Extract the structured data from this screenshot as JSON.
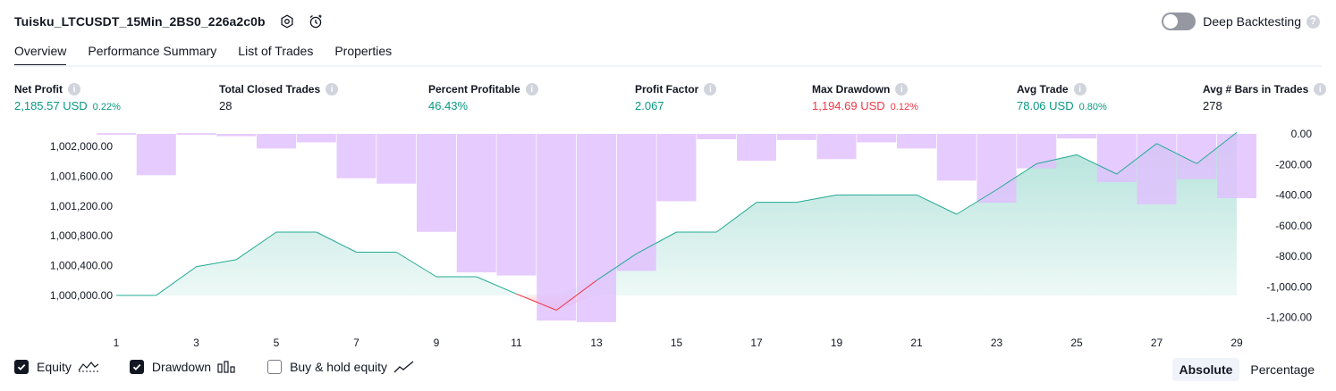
{
  "header": {
    "strategy_title": "Tuisku_LTCUSDT_15Min_2BS0_226a2c0b",
    "deep_backtesting_label": "Deep Backtesting",
    "deep_backtesting_on": false
  },
  "tabs": [
    {
      "label": "Overview",
      "active": true
    },
    {
      "label": "Performance Summary",
      "active": false
    },
    {
      "label": "List of Trades",
      "active": false
    },
    {
      "label": "Properties",
      "active": false
    }
  ],
  "metrics": {
    "net_profit": {
      "label": "Net Profit",
      "value": "2,185.57 USD",
      "pct": "0.22%"
    },
    "total_closed_trades": {
      "label": "Total Closed Trades",
      "value": "28"
    },
    "percent_profitable": {
      "label": "Percent Profitable",
      "value": "46.43%"
    },
    "profit_factor": {
      "label": "Profit Factor",
      "value": "2.067"
    },
    "max_drawdown": {
      "label": "Max Drawdown",
      "value": "1,194.69 USD",
      "pct": "0.12%"
    },
    "avg_trade": {
      "label": "Avg Trade",
      "value": "78.06 USD",
      "pct": "0.80%"
    },
    "avg_bars": {
      "label": "Avg # Bars in Trades",
      "value": "278"
    }
  },
  "colors": {
    "profit_green": "#089981",
    "loss_red": "#f23645",
    "drawdown_bar": "#e1bffe",
    "equity_line": "#22ab94"
  },
  "chart_data": {
    "type": "line",
    "x": [
      1,
      2,
      3,
      4,
      5,
      6,
      7,
      8,
      9,
      10,
      11,
      12,
      13,
      14,
      15,
      16,
      17,
      18,
      19,
      20,
      21,
      22,
      23,
      24,
      25,
      26,
      27,
      28,
      29
    ],
    "x_ticks": [
      "1",
      "3",
      "5",
      "7",
      "9",
      "11",
      "13",
      "15",
      "17",
      "19",
      "21",
      "23",
      "25",
      "27",
      "29"
    ],
    "series": [
      {
        "name": "Equity",
        "axis": "left",
        "values": [
          1000000,
          1000000,
          1000385,
          1000480,
          1000850,
          1000850,
          1000580,
          1000580,
          1000250,
          1000250,
          1000020,
          999800,
          1000200,
          1000560,
          1000850,
          1000850,
          1001250,
          1001250,
          1001350,
          1001350,
          1001350,
          1001090,
          1001420,
          1001770,
          1001890,
          1001630,
          1002040,
          1001770,
          1002190
        ]
      },
      {
        "name": "Drawdown",
        "axis": "right",
        "type": "bar",
        "values": [
          0,
          -270,
          0,
          -15,
          -95,
          -55,
          -290,
          -325,
          -640,
          -905,
          -925,
          -1220,
          -1230,
          -895,
          -440,
          -35,
          -175,
          -40,
          -165,
          -55,
          -95,
          -305,
          -450,
          -225,
          -30,
          -315,
          -460,
          -295,
          -420
        ]
      }
    ],
    "left_axis": {
      "ticks": [
        "1,000,000.00",
        "1,000,400.00",
        "1,000,800.00",
        "1,001,200.00",
        "1,001,600.00",
        "1,002,000.00"
      ],
      "range": [
        999650,
        1002170
      ]
    },
    "right_axis": {
      "ticks": [
        "0.00",
        "-200.00",
        "-400.00",
        "-600.00",
        "-800.00",
        "-1,000.00",
        "-1,200.00"
      ],
      "range": [
        -1225,
        0
      ]
    },
    "grid": false
  },
  "legend": {
    "equity_label": "Equity",
    "equity_checked": true,
    "drawdown_label": "Drawdown",
    "drawdown_checked": true,
    "buyhold_label": "Buy & hold equity",
    "buyhold_checked": false
  },
  "view_toggle": {
    "absolute_label": "Absolute",
    "percentage_label": "Percentage",
    "active": "Absolute"
  }
}
